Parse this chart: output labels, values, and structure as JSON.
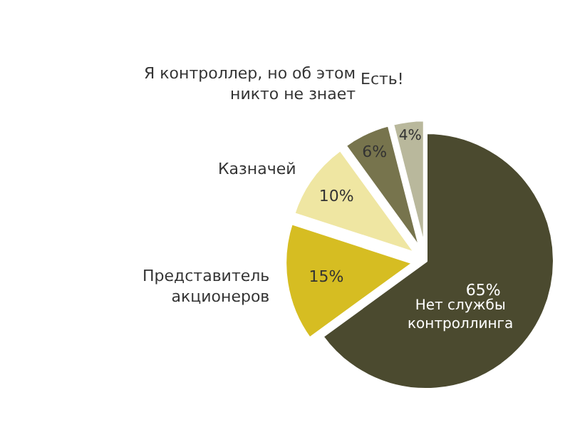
{
  "chart_data": {
    "type": "pie",
    "categories": [
      "Нет службы\nконтроллинга",
      "Представитель\nакционеров",
      "Казначей",
      "Я контроллер, но об этом\nникто не знает",
      "Есть!"
    ],
    "values": [
      65,
      15,
      10,
      6,
      4
    ],
    "value_labels": [
      "65%",
      "15%",
      "10%",
      "6%",
      "4%"
    ],
    "colors": [
      "#4b4a2f",
      "#d6bd22",
      "#efe6a2",
      "#77744d",
      "#b9b89c"
    ],
    "legend": false
  }
}
